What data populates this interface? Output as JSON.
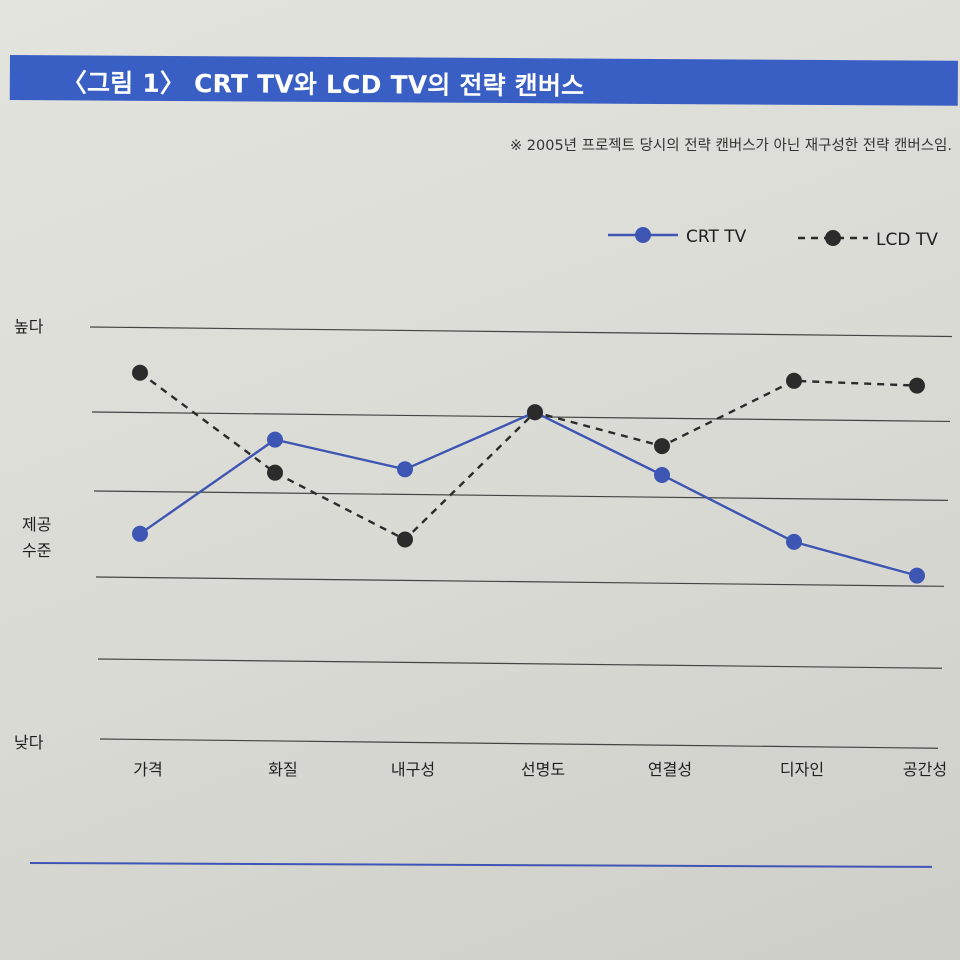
{
  "figure": {
    "title": "〈그림 1〉 CRT TV와 LCD TV의 전략 캔버스",
    "note": "※ 2005년 프로젝트 당시의 전략 캔버스가 아닌 재구성한 전략 캔버스임."
  },
  "colors": {
    "title_bar": "#3a5fc4",
    "crt": "#3d55b3",
    "lcd": "#2b2b2b"
  },
  "chart_data": {
    "type": "line",
    "title": "",
    "xlabel": "",
    "ylabel": "",
    "categories": [
      "가격",
      "화질",
      "내구성",
      "선명도",
      "연결성",
      "디자인",
      "공간성"
    ],
    "y_tick_labels": [
      "높다",
      "제공 수준",
      "낮다"
    ],
    "ylim": [
      0,
      10
    ],
    "grid": true,
    "legend_position": "top-right",
    "series": [
      {
        "name": "CRT TV",
        "style": "solid",
        "values": [
          5.0,
          7.3,
          6.6,
          8.0,
          6.5,
          4.9,
          4.1
        ]
      },
      {
        "name": "LCD TV",
        "style": "dashed",
        "values": [
          8.9,
          6.5,
          4.9,
          8.0,
          7.2,
          8.8,
          8.7
        ]
      }
    ]
  }
}
